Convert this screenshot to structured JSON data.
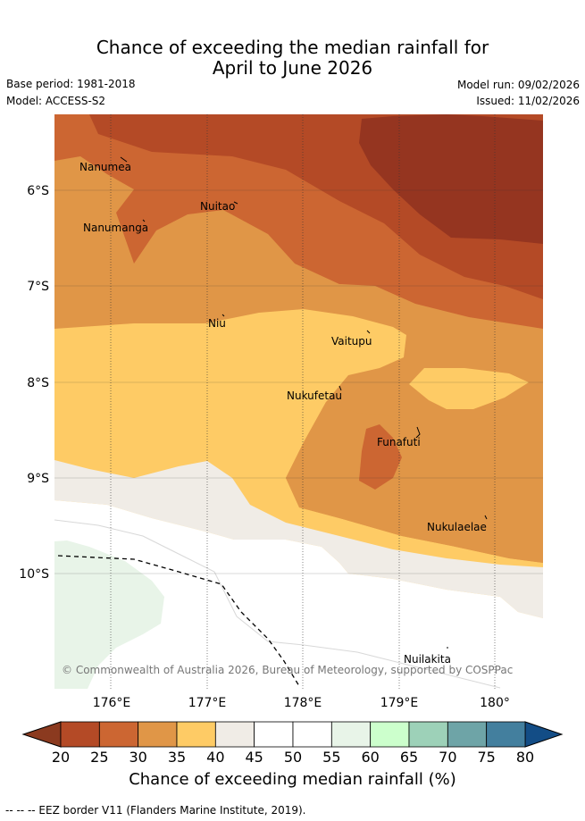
{
  "title": {
    "line1": "Chance of exceeding the median rainfall for",
    "line2": "April to June 2026"
  },
  "meta": {
    "base_period": "Base period: 1981-2018",
    "model": "Model: ACCESS-S2",
    "model_run": "Model run: 09/02/2026",
    "issued": "Issued: 11/02/2026"
  },
  "map": {
    "lat_labels": [
      "6°S",
      "7°S",
      "8°S",
      "9°S",
      "10°S"
    ],
    "lon_labels": [
      "176°E",
      "177°E",
      "178°E",
      "179°E",
      "180°"
    ],
    "places": {
      "nanumea": "Nanumea",
      "nuitao": "Nuitao",
      "nanumanga": "Nanumanga",
      "niu": "Niu",
      "vaitupu": "Vaitupu",
      "nukufetau": "Nukufetau",
      "funafuti": "Funafuti",
      "nukulaelae": "Nukulaelae",
      "nuilakita": "Nuilakita"
    },
    "copyright": "© Commonwealth of Australia 2026, Bureau of Meteorology, supported by COSPPac"
  },
  "colorbar": {
    "ticks": [
      "20",
      "25",
      "30",
      "35",
      "40",
      "45",
      "50",
      "55",
      "60",
      "65",
      "70",
      "75",
      "80"
    ],
    "colors": [
      "#b44a26",
      "#cc6632",
      "#e09647",
      "#fecb65",
      "#f0ece6",
      "#ffffff",
      "#ffffff",
      "#e8f4e8",
      "#ccffcc",
      "#9dd1b8",
      "#6ea4a7",
      "#437f9e"
    ],
    "low_color": "#8b3a1f",
    "high_color": "#134d86",
    "label": "Chance of exceeding median rainfall (%)"
  },
  "footnote": "--  --  -- EEZ border V11 (Flanders Marine Institute, 2019)."
}
